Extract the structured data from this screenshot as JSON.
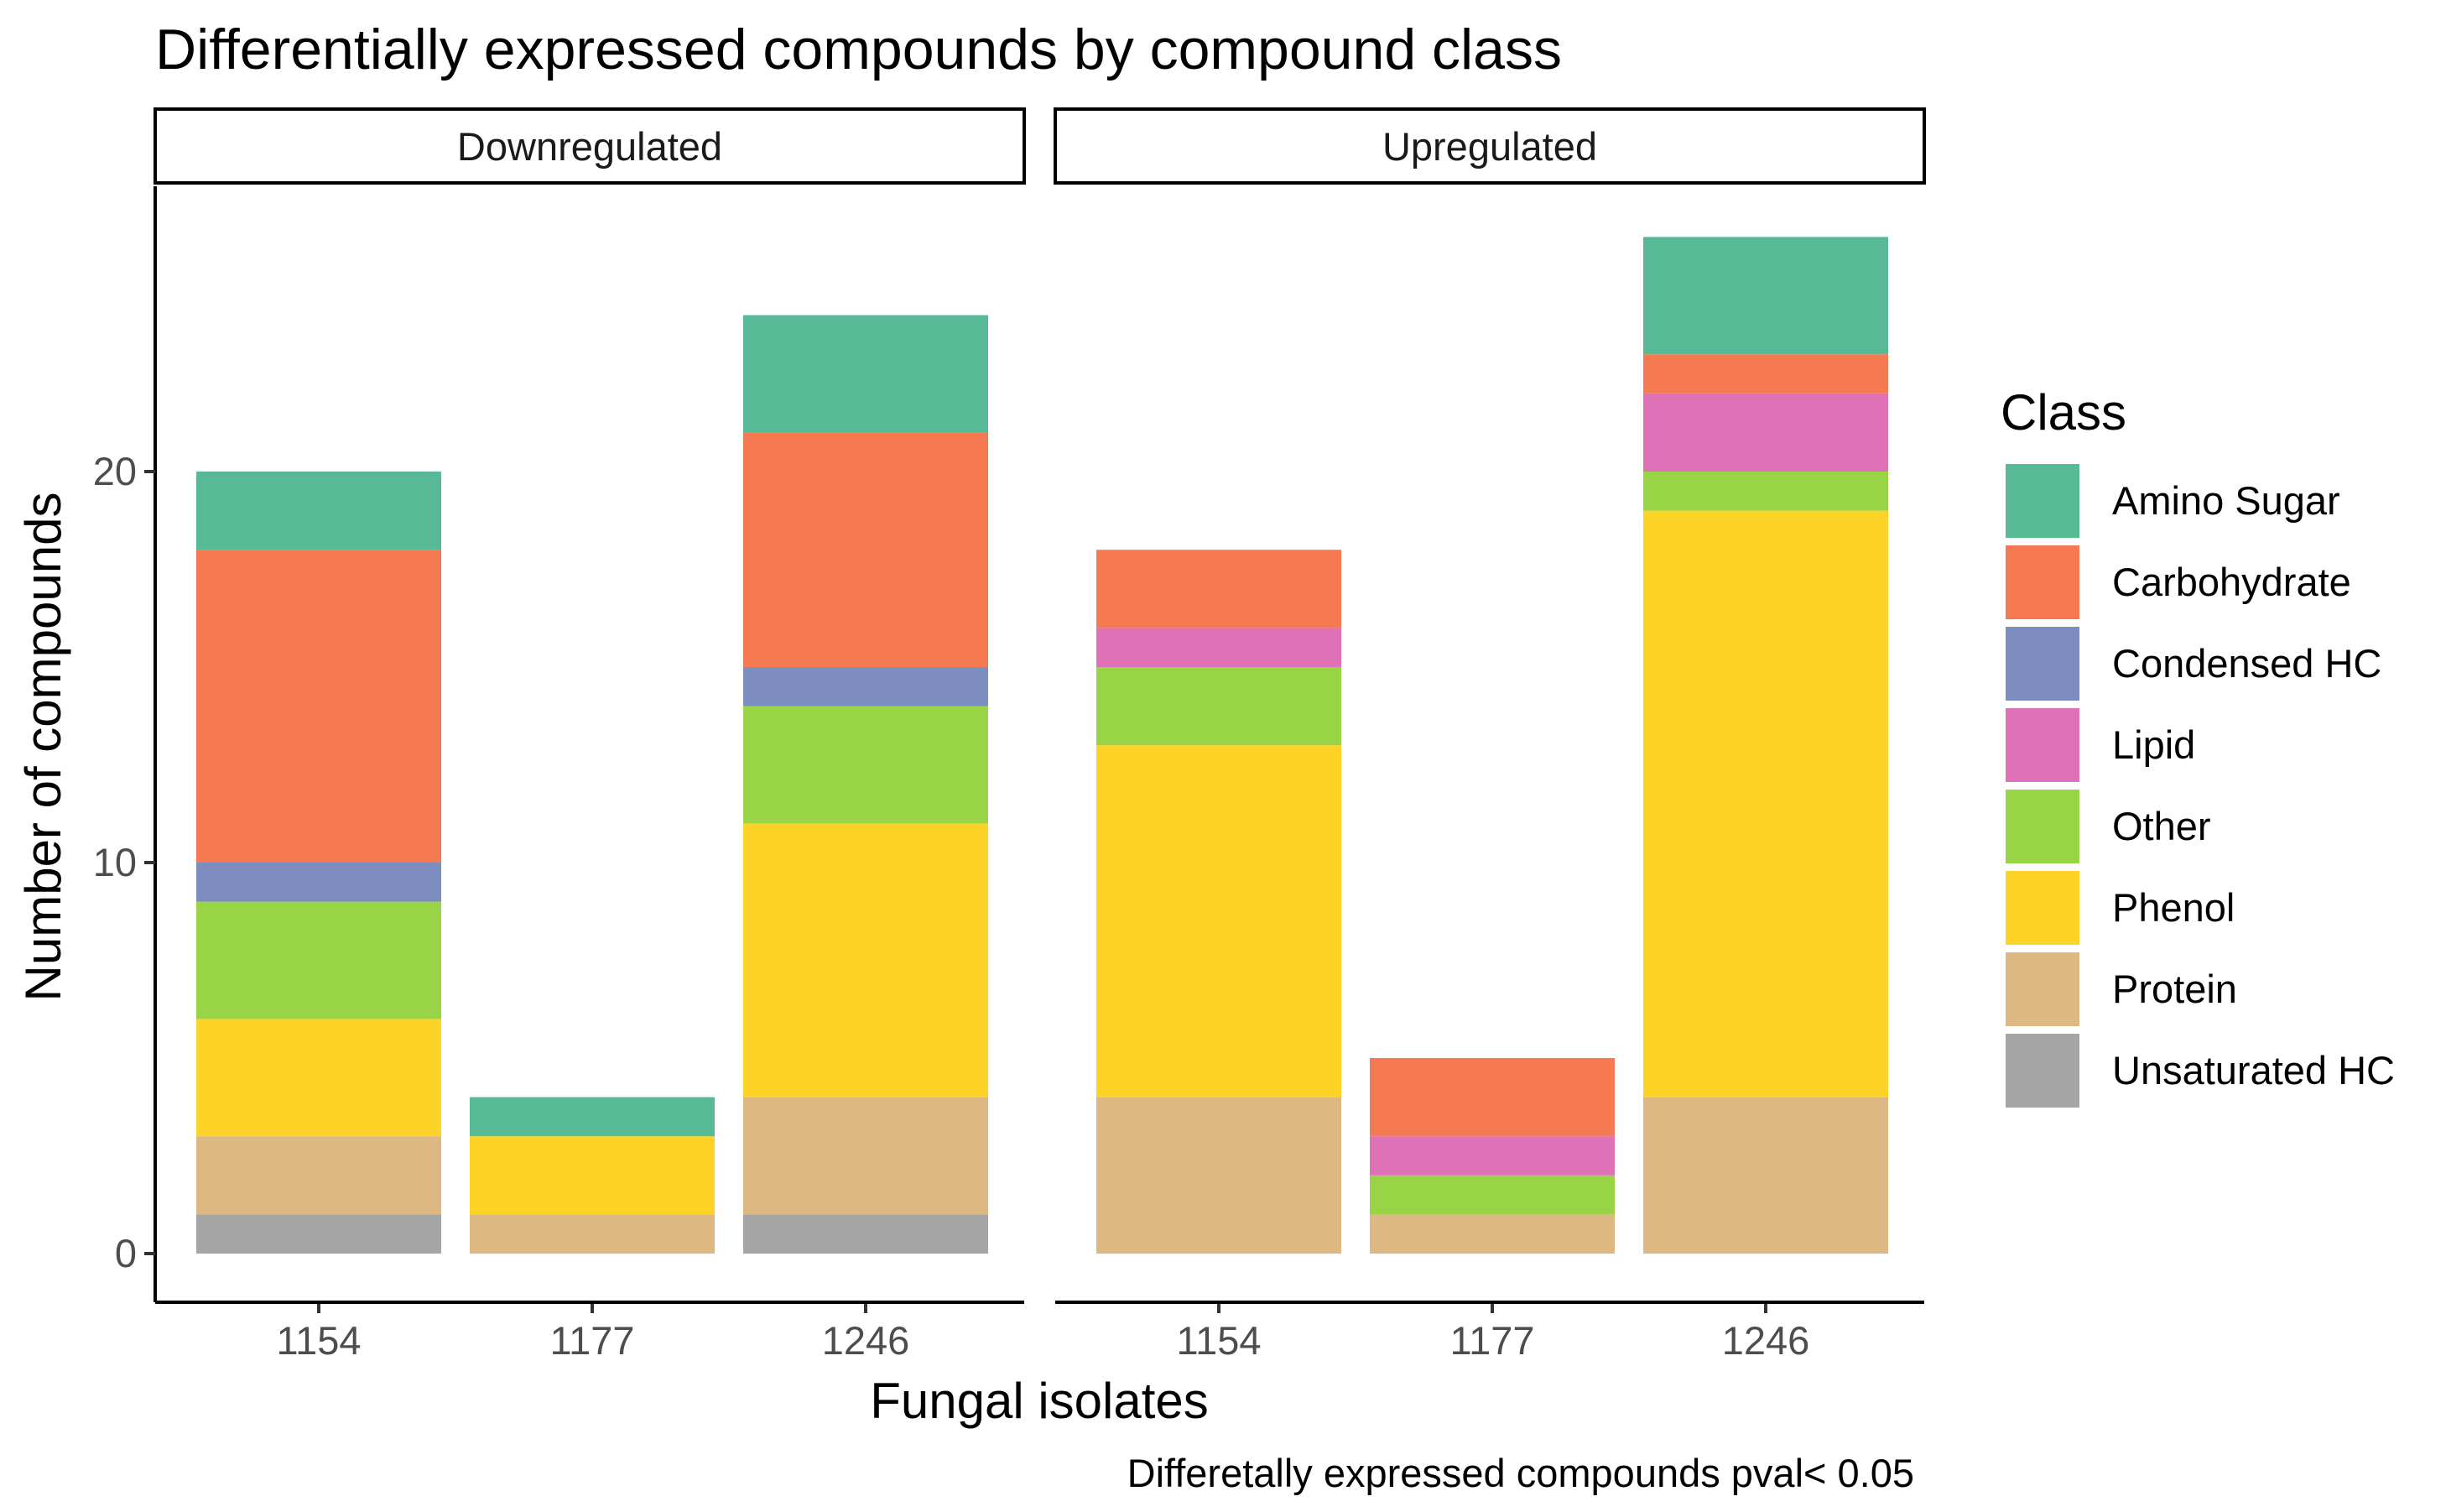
{
  "chart_data": {
    "type": "bar",
    "stacked": true,
    "title": "Differentially expressed compounds by compound class",
    "xlabel": "Fungal isolates",
    "ylabel": "Number of compounds",
    "caption": "Differetally expressed compounds pval< 0.05",
    "ylim": [
      0,
      27
    ],
    "yticks": [
      0,
      10,
      20
    ],
    "grid": false,
    "legend": {
      "title": "Class",
      "position": "right",
      "entries": [
        "Amino Sugar",
        "Carbohydrate",
        "Condensed HC",
        "Lipid",
        "Other",
        "Phenol",
        "Protein",
        "Unsaturated HC"
      ]
    },
    "colors": {
      "Amino Sugar": "#57B995",
      "Carbohydrate": "#F67A51",
      "Condensed HC": "#7D8DBF",
      "Lipid": "#DF72B6",
      "Other": "#98D446",
      "Phenol": "#FDD328",
      "Protein": "#DDB882",
      "Unsaturated HC": "#A5A5A5"
    },
    "categories": [
      "1154",
      "1177",
      "1246"
    ],
    "facets": [
      {
        "label": "Downregulated",
        "series": [
          {
            "name": "Unsaturated HC",
            "values": [
              1,
              0,
              1
            ]
          },
          {
            "name": "Protein",
            "values": [
              2,
              1,
              3
            ]
          },
          {
            "name": "Phenol",
            "values": [
              3,
              2,
              7
            ]
          },
          {
            "name": "Other",
            "values": [
              3,
              0,
              3
            ]
          },
          {
            "name": "Lipid",
            "values": [
              0,
              0,
              0
            ]
          },
          {
            "name": "Condensed HC",
            "values": [
              1,
              0,
              1
            ]
          },
          {
            "name": "Carbohydrate",
            "values": [
              8,
              0,
              6
            ]
          },
          {
            "name": "Amino Sugar",
            "values": [
              2,
              1,
              3
            ]
          }
        ]
      },
      {
        "label": "Upregulated",
        "series": [
          {
            "name": "Unsaturated HC",
            "values": [
              0,
              0,
              0
            ]
          },
          {
            "name": "Protein",
            "values": [
              4,
              1,
              4
            ]
          },
          {
            "name": "Phenol",
            "values": [
              9,
              0,
              15
            ]
          },
          {
            "name": "Other",
            "values": [
              2,
              1,
              1
            ]
          },
          {
            "name": "Lipid",
            "values": [
              1,
              1,
              2
            ]
          },
          {
            "name": "Condensed HC",
            "values": [
              0,
              0,
              0
            ]
          },
          {
            "name": "Carbohydrate",
            "values": [
              2,
              2,
              1
            ]
          },
          {
            "name": "Amino Sugar",
            "values": [
              0,
              0,
              3
            ]
          }
        ]
      }
    ]
  }
}
